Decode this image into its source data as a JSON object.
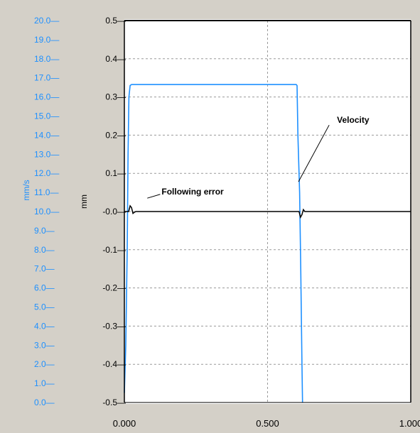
{
  "chart_data": {
    "type": "line",
    "title": "",
    "xlabel": "",
    "xlim": [
      0.0,
      1.0
    ],
    "x_ticks": [
      "0.000",
      "0.500",
      "1.000"
    ],
    "grid": true,
    "axes": {
      "velocity": {
        "label": "mm/s",
        "ylim": [
          0.0,
          20.0
        ],
        "ticks": [
          "20.0—",
          "19.0—",
          "18.0—",
          "17.0—",
          "16.0—",
          "15.0—",
          "14.0—",
          "13.0—",
          "12.0—",
          "11.0—",
          "10.0—",
          "9.0—",
          "8.0—",
          "7.0—",
          "6.0—",
          "5.0—",
          "4.0—",
          "3.0—",
          "2.0—",
          "1.0—",
          "0.0—"
        ],
        "color": "#1e90ff"
      },
      "error": {
        "label": "mm",
        "ylim": [
          -0.5,
          0.5
        ],
        "ticks": [
          "0.5—",
          "0.4—",
          "0.3—",
          "0.2—",
          "0.1—",
          "-0.0—",
          "-0.1—",
          "-0.2—",
          "-0.3—",
          "-0.4—",
          "-0.5—"
        ],
        "color": "#000000"
      }
    },
    "series": [
      {
        "axis": "velocity",
        "color": "#1e90ff",
        "points": [
          [
            0.0,
            0.5
          ],
          [
            0.005,
            3.0
          ],
          [
            0.01,
            8.0
          ],
          [
            0.013,
            13.0
          ],
          [
            0.016,
            16.0
          ],
          [
            0.02,
            16.6
          ],
          [
            0.025,
            16.65
          ],
          [
            0.6,
            16.65
          ],
          [
            0.603,
            16.6
          ],
          [
            0.606,
            14.0
          ],
          [
            0.612,
            11.0
          ],
          [
            0.616,
            7.0
          ],
          [
            0.62,
            2.0
          ],
          [
            0.622,
            0.0
          ]
        ]
      },
      {
        "axis": "error",
        "color": "#000000",
        "points": [
          [
            0.0,
            0.0
          ],
          [
            0.015,
            0.0
          ],
          [
            0.02,
            0.015
          ],
          [
            0.025,
            0.01
          ],
          [
            0.03,
            -0.005
          ],
          [
            0.035,
            -0.002
          ],
          [
            0.04,
            0.0
          ],
          [
            0.6,
            0.0
          ],
          [
            0.61,
            0.0
          ],
          [
            0.615,
            -0.015
          ],
          [
            0.62,
            -0.008
          ],
          [
            0.625,
            0.005
          ],
          [
            0.63,
            0.0
          ],
          [
            1.0,
            0.0
          ]
        ]
      }
    ],
    "annotations": [
      {
        "text": "Velocity",
        "x": 0.72,
        "y_error": 0.24
      },
      {
        "text": "Following error",
        "x": 0.13,
        "y_error": 0.05
      }
    ]
  }
}
